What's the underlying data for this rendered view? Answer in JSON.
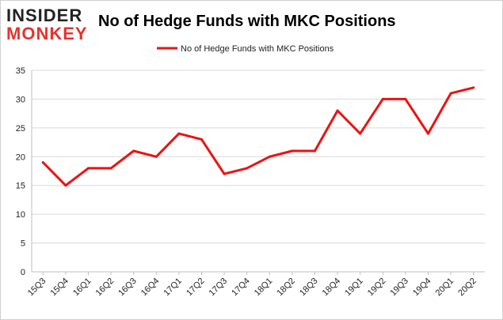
{
  "logo": {
    "line1": "INSIDER",
    "line2": "MONKEY"
  },
  "chart_data": {
    "type": "line",
    "title": "No of Hedge Funds with MKC Positions",
    "xlabel": "",
    "ylabel": "",
    "categories": [
      "15Q3",
      "15Q4",
      "16Q1",
      "16Q2",
      "16Q3",
      "16Q4",
      "17Q1",
      "17Q2",
      "17Q3",
      "17Q4",
      "18Q1",
      "18Q2",
      "18Q3",
      "18Q4",
      "19Q1",
      "19Q2",
      "19Q3",
      "19Q4",
      "20Q1",
      "20Q2"
    ],
    "series": [
      {
        "name": "No of Hedge Funds with MKC Positions",
        "values": [
          19,
          15,
          18,
          18,
          21,
          20,
          24,
          23,
          17,
          18,
          20,
          21,
          21,
          28,
          24,
          30,
          30,
          24,
          31,
          32
        ],
        "color": "#ee1111"
      }
    ],
    "ylim": [
      0,
      35
    ],
    "yticks": [
      0,
      5,
      10,
      15,
      20,
      25,
      30,
      35
    ],
    "grid": true,
    "legend_position": "top-center",
    "colors": {
      "line": "#ee1111",
      "logo_dark": "#222222",
      "logo_red": "#e8332c",
      "grid": "#d9d9d9"
    }
  }
}
